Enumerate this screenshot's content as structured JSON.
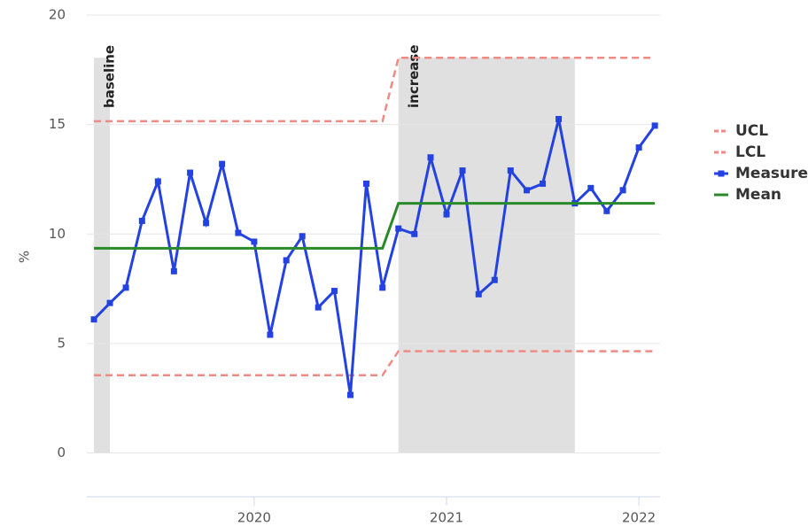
{
  "chart_data": {
    "type": "line",
    "y_label": "%",
    "x": [
      2019.167,
      2019.25,
      2019.333,
      2019.417,
      2019.5,
      2019.583,
      2019.667,
      2019.75,
      2019.833,
      2019.917,
      2020.0,
      2020.083,
      2020.167,
      2020.25,
      2020.333,
      2020.417,
      2020.5,
      2020.583,
      2020.667,
      2020.75,
      2020.833,
      2020.917,
      2021.0,
      2021.083,
      2021.167,
      2021.25,
      2021.333,
      2021.417,
      2021.5,
      2021.583,
      2021.667,
      2021.75,
      2021.833,
      2021.917,
      2022.0,
      2022.083
    ],
    "series": [
      {
        "name": "UCL",
        "color": "#f08a84",
        "dashed": true,
        "markers": false,
        "values": [
          15.15,
          15.15,
          15.15,
          15.15,
          15.15,
          15.15,
          15.15,
          15.15,
          15.15,
          15.15,
          15.15,
          15.15,
          15.15,
          15.15,
          15.15,
          15.15,
          15.15,
          15.15,
          15.15,
          18.05,
          18.05,
          18.05,
          18.05,
          18.05,
          18.05,
          18.05,
          18.05,
          18.05,
          18.05,
          18.05,
          18.05,
          18.05,
          18.05,
          18.05,
          18.05,
          18.05
        ]
      },
      {
        "name": "LCL",
        "color": "#f08a84",
        "dashed": true,
        "markers": false,
        "values": [
          3.55,
          3.55,
          3.55,
          3.55,
          3.55,
          3.55,
          3.55,
          3.55,
          3.55,
          3.55,
          3.55,
          3.55,
          3.55,
          3.55,
          3.55,
          3.55,
          3.55,
          3.55,
          3.55,
          4.65,
          4.65,
          4.65,
          4.65,
          4.65,
          4.65,
          4.65,
          4.65,
          4.65,
          4.65,
          4.65,
          4.65,
          4.65,
          4.65,
          4.65,
          4.65,
          4.65
        ]
      },
      {
        "name": "Measure",
        "color": "#2342e0",
        "dashed": false,
        "markers": true,
        "values": [
          6.1,
          6.85,
          7.55,
          10.6,
          12.4,
          8.3,
          12.8,
          10.5,
          13.2,
          10.05,
          9.65,
          5.4,
          8.8,
          9.9,
          6.65,
          7.4,
          2.65,
          12.3,
          7.55,
          10.25,
          10.0,
          13.5,
          10.9,
          12.9,
          7.25,
          7.9,
          12.9,
          12.0,
          12.3,
          15.25,
          11.4,
          12.1,
          11.05,
          12.0,
          13.95,
          14.95
        ]
      },
      {
        "name": "Mean",
        "color": "#2a8a2a",
        "dashed": false,
        "markers": false,
        "values": [
          9.35,
          9.35,
          9.35,
          9.35,
          9.35,
          9.35,
          9.35,
          9.35,
          9.35,
          9.35,
          9.35,
          9.35,
          9.35,
          9.35,
          9.35,
          9.35,
          9.35,
          9.35,
          9.35,
          11.4,
          11.4,
          11.4,
          11.4,
          11.4,
          11.4,
          11.4,
          11.4,
          11.4,
          11.4,
          11.4,
          11.4,
          11.4,
          11.4,
          11.4,
          11.4,
          11.4
        ]
      }
    ],
    "bands": [
      {
        "label": "baseline",
        "from": 2019.167,
        "to": 2019.25
      },
      {
        "label": "increase",
        "from": 2020.75,
        "to": 2021.667
      }
    ],
    "xlim": [
      2019.13,
      2022.11
    ],
    "xticks": [
      2020,
      2021,
      2022
    ],
    "ylim": [
      -2,
      20
    ],
    "yticks": [
      0,
      5,
      10,
      15,
      20
    ],
    "grid": true,
    "legend": "right"
  }
}
